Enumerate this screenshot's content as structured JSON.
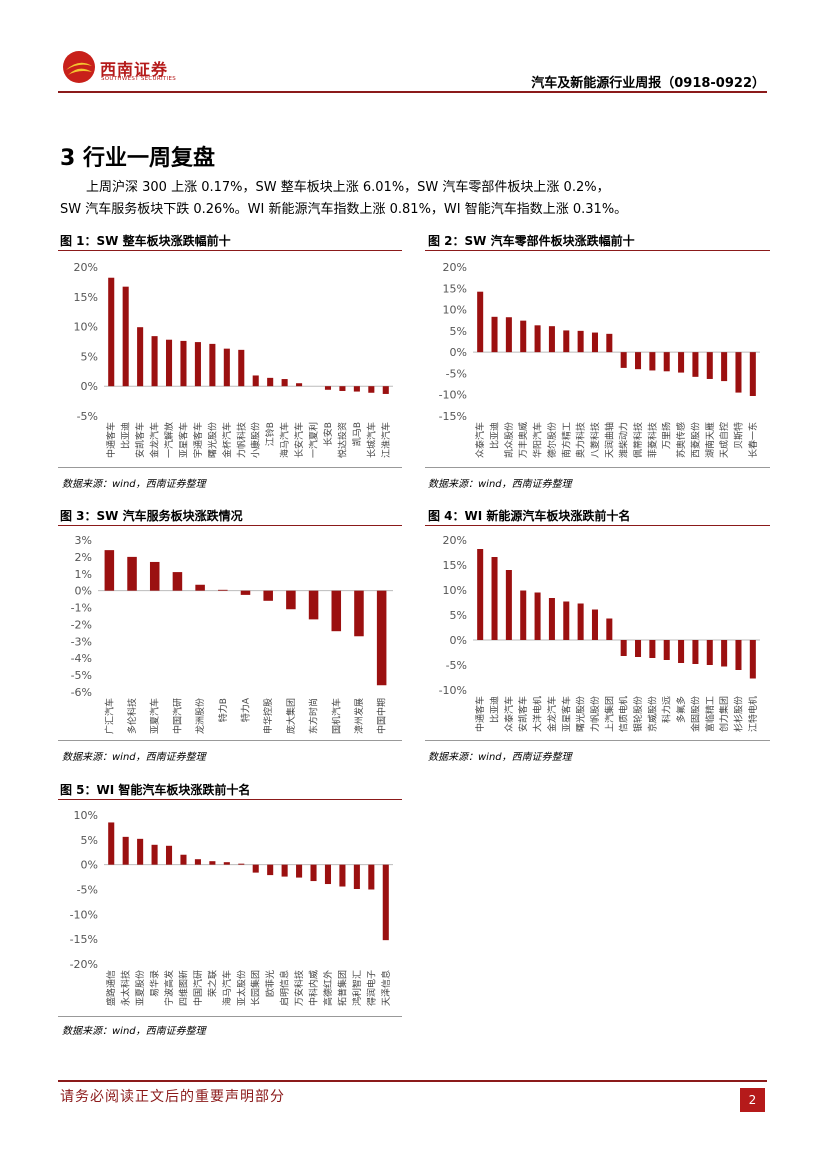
{
  "header": {
    "logo_cn": "西南证券",
    "logo_en": "SOUTHWEST SECURITIES",
    "report_title": "汽车及新能源行业周报（0918-0922）"
  },
  "section": {
    "title": "3 行业一周复盘",
    "para_line1": "上周沪深 300 上涨 0.17%，SW 整车板块上涨 6.01%，SW 汽车零部件板块上涨 0.2%，",
    "para_line2": "SW 汽车服务板块下跌 0.26%。WI 新能源汽车指数上涨 0.81%，WI 智能汽车指数上涨 0.31%。"
  },
  "colors": {
    "bar": "#9b1010",
    "accent": "#8b1a1a"
  },
  "chart_data": [
    {
      "type": "bar",
      "title": "图 1：SW 整车板块涨跌幅前十",
      "source": "数据来源：wind，西南证券整理",
      "ylim": [
        -5,
        20
      ],
      "yticks": [
        -5,
        0,
        5,
        10,
        15,
        20
      ],
      "categories": [
        "中通客车",
        "比亚迪",
        "安凯客车",
        "金龙汽车",
        "一汽解放",
        "亚星客车",
        "宇通客车",
        "曙光股份",
        "金杯汽车",
        "力帆科技",
        "小康股份",
        "江铃B",
        "海马汽车",
        "长安汽车",
        "一汽夏利",
        "长安B",
        "悦达投资",
        "凯马B",
        "长城汽车",
        "江淮汽车"
      ],
      "values": [
        18.2,
        16.7,
        9.9,
        8.4,
        7.8,
        7.6,
        7.4,
        7.1,
        6.3,
        6.1,
        1.8,
        1.4,
        1.2,
        0.5,
        0,
        -0.6,
        -0.8,
        -0.9,
        -1.1,
        -1.3
      ]
    },
    {
      "type": "bar",
      "title": "图 2：SW 汽车零部件板块涨跌幅前十",
      "source": "数据来源：wind，西南证券整理",
      "ylim": [
        -15,
        20
      ],
      "yticks": [
        -15,
        -10,
        -5,
        0,
        5,
        10,
        15,
        20
      ],
      "categories": [
        "众泰汽车",
        "比亚迪",
        "凯众股份",
        "万丰奥威",
        "华阳汽车",
        "德尔股份",
        "南方精工",
        "奥力科技",
        "八菱科技",
        "天润曲轴",
        "潍柴动力",
        "佩蒂科技",
        "菲菱科技",
        "万里扬",
        "苏奥传感",
        "西菱股份",
        "湖南天雁",
        "天成自控",
        "贝斯特",
        "长春一东"
      ],
      "values": [
        14.2,
        8.3,
        8.2,
        7.4,
        6.3,
        6.1,
        5.1,
        5.0,
        4.6,
        4.3,
        -3.7,
        -4.0,
        -4.3,
        -4.5,
        -4.8,
        -5.8,
        -6.3,
        -6.8,
        -9.5,
        -10.3
      ]
    },
    {
      "type": "bar",
      "title": "图 3：SW 汽车服务板块涨跌情况",
      "source": "数据来源：wind，西南证券整理",
      "ylim": [
        -6,
        3
      ],
      "yticks": [
        -6,
        -5,
        -4,
        -3,
        -2,
        -1,
        0,
        1,
        2,
        3
      ],
      "categories": [
        "广汇汽车",
        "多伦科技",
        "亚夏汽车",
        "中国汽研",
        "龙洲股份",
        "特力B",
        "特力A",
        "申华控股",
        "庞大集团",
        "东方时尚",
        "国机汽车",
        "漳州发展",
        "中国中期"
      ],
      "values": [
        2.4,
        2.0,
        1.7,
        1.1,
        0.35,
        0.05,
        -0.25,
        -0.6,
        -1.1,
        -1.7,
        -2.4,
        -2.7,
        -5.6
      ]
    },
    {
      "type": "bar",
      "title": "图 4：WI 新能源汽车板块涨跌前十名",
      "source": "数据来源：wind，西南证券整理",
      "ylim": [
        -10,
        20
      ],
      "yticks": [
        -10,
        -5,
        0,
        5,
        10,
        15,
        20
      ],
      "categories": [
        "中通客车",
        "比亚迪",
        "众泰汽车",
        "安凯客车",
        "大洋电机",
        "金龙汽车",
        "亚星客车",
        "曙光股份",
        "力帆股份",
        "上汽集团",
        "信质电机",
        "银轮股份",
        "京威股份",
        "科力远",
        "多氟多",
        "金固股份",
        "富临精工",
        "创力集团",
        "杉杉股份",
        "江特电机"
      ],
      "values": [
        18.2,
        16.6,
        14.0,
        9.9,
        9.5,
        8.4,
        7.7,
        7.3,
        6.1,
        4.3,
        -3.2,
        -3.4,
        -3.6,
        -4.0,
        -4.6,
        -4.8,
        -5.0,
        -5.3,
        -6.0,
        -7.7
      ]
    },
    {
      "type": "bar",
      "title": "图 5：WI 智能汽车板块涨跌前十名",
      "source": "数据来源：wind，西南证券整理",
      "ylim": [
        -20,
        10
      ],
      "yticks": [
        -20,
        -15,
        -10,
        -5,
        0,
        5,
        10
      ],
      "categories": [
        "盛路通信",
        "永太科技",
        "亚夏股份",
        "易华录",
        "宁波高发",
        "四维图新",
        "中国汽研",
        "荣之联",
        "海马汽车",
        "亚太股份",
        "长园集团",
        "欧菲光",
        "启明信息",
        "万安科技",
        "中科内威",
        "高德红外",
        "拓普集团",
        "鸿利智汇",
        "得润电子",
        "天泽信息"
      ],
      "values": [
        8.5,
        5.6,
        5.2,
        4.0,
        3.8,
        2.0,
        1.1,
        0.7,
        0.5,
        0.2,
        -1.6,
        -2.1,
        -2.4,
        -2.6,
        -3.3,
        -3.9,
        -4.4,
        -4.9,
        -5.0,
        -15.2
      ]
    }
  ],
  "footer": {
    "disclaimer": "请务必阅读正文后的重要声明部分",
    "page": "2"
  }
}
